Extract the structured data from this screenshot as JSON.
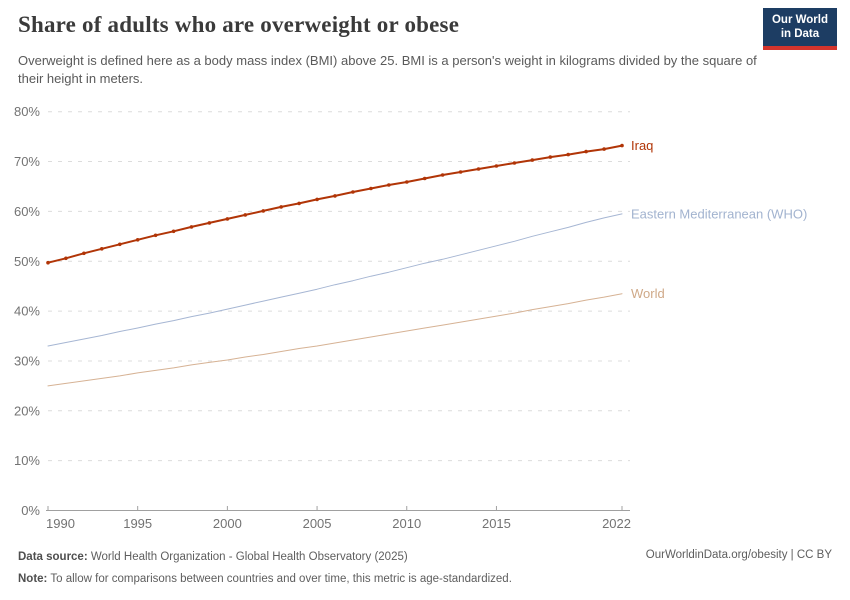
{
  "header": {
    "title": "Share of adults who are overweight or obese",
    "subtitle": "Overweight is defined here as a body mass index (BMI) above 25. BMI is a person's weight in kilograms divided by the square of their height in meters.",
    "logo_line1": "Our World",
    "logo_line2": "in Data",
    "logo_bg_color": "#1d3d63",
    "logo_accent_color": "#d4342c"
  },
  "footer": {
    "data_source_label": "Data source:",
    "data_source_text": "World Health Organization - Global Health Observatory (2025)",
    "note_label": "Note:",
    "note_text": "To allow for comparisons between countries and over time, this metric is age-standardized.",
    "credit": "OurWorldinData.org/obesity | CC BY"
  },
  "chart_data": {
    "type": "line",
    "title": "Share of adults who are overweight or obese",
    "xlabel": "",
    "ylabel": "",
    "x_range": [
      1990,
      2022
    ],
    "x_label_ticks": [
      1990,
      1995,
      2000,
      2005,
      2010,
      2015,
      2022
    ],
    "y_ticks": [
      0,
      10,
      20,
      30,
      40,
      50,
      60,
      70,
      80
    ],
    "y_tick_suffix": "%",
    "ylim": [
      0,
      80
    ],
    "grid": "horizontal dashed gridlines",
    "legend_position": "labels at right end of each line",
    "axis_color": "#a0a0a0",
    "grid_color": "#dcdcdc",
    "tick_label_color": "#737373",
    "years": [
      1990,
      1991,
      1992,
      1993,
      1994,
      1995,
      1996,
      1997,
      1998,
      1999,
      2000,
      2001,
      2002,
      2003,
      2004,
      2005,
      2006,
      2007,
      2008,
      2009,
      2010,
      2011,
      2012,
      2013,
      2014,
      2015,
      2016,
      2017,
      2018,
      2019,
      2020,
      2021,
      2022
    ],
    "series": [
      {
        "name": "Iraq",
        "color": "#b13507",
        "label_color": "#b13507",
        "line_width": 2,
        "markers": true,
        "values": [
          49.7,
          50.6,
          51.6,
          52.5,
          53.4,
          54.3,
          55.2,
          56.0,
          56.9,
          57.7,
          58.5,
          59.3,
          60.1,
          60.9,
          61.6,
          62.4,
          63.1,
          63.9,
          64.6,
          65.3,
          65.9,
          66.6,
          67.3,
          67.9,
          68.5,
          69.1,
          69.7,
          70.3,
          70.9,
          71.4,
          72.0,
          72.5,
          73.2
        ]
      },
      {
        "name": "Eastern Mediterranean (WHO)",
        "color": "#a6b6d3",
        "label_color": "#a2b3cf",
        "line_width": 1,
        "markers": false,
        "values": [
          33.0,
          33.7,
          34.4,
          35.1,
          35.9,
          36.6,
          37.4,
          38.1,
          38.9,
          39.6,
          40.4,
          41.2,
          42.0,
          42.8,
          43.6,
          44.4,
          45.3,
          46.1,
          47.0,
          47.8,
          48.7,
          49.6,
          50.4,
          51.3,
          52.2,
          53.1,
          54.0,
          55.0,
          55.9,
          56.8,
          57.8,
          58.7,
          59.5
        ]
      },
      {
        "name": "World",
        "color": "#d6b294",
        "label_color": "#cfa988",
        "line_width": 1,
        "markers": false,
        "values": [
          25.0,
          25.5,
          26.0,
          26.5,
          27.0,
          27.6,
          28.1,
          28.6,
          29.2,
          29.7,
          30.2,
          30.8,
          31.3,
          31.9,
          32.5,
          33.0,
          33.6,
          34.2,
          34.8,
          35.4,
          36.0,
          36.6,
          37.2,
          37.8,
          38.4,
          39.0,
          39.6,
          40.3,
          40.9,
          41.5,
          42.2,
          42.8,
          43.5
        ]
      }
    ]
  }
}
